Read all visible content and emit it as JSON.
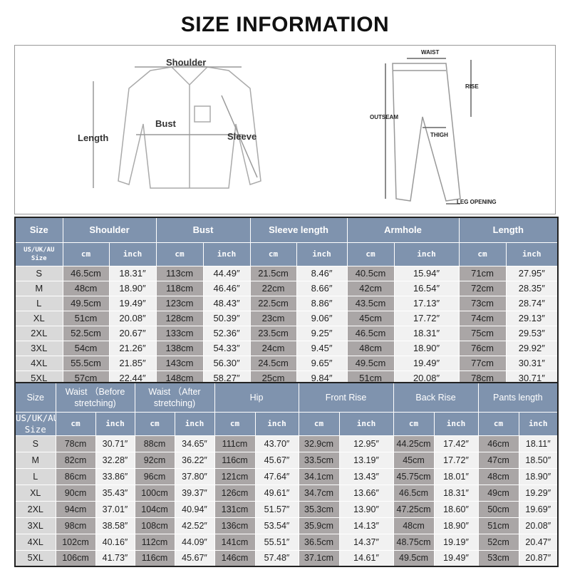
{
  "title": "SIZE INFORMATION",
  "shirt_diagram": {
    "labels": {
      "shoulder": "Shoulder",
      "bust": "Bust",
      "length": "Length",
      "sleeve": "Sleeve"
    }
  },
  "pants_diagram": {
    "labels": {
      "waist": "WAIST",
      "rise": "RISE",
      "outseam": "OUTSEAM",
      "thigh": "THIGH",
      "leg_opening": "LEG OPENING"
    }
  },
  "units": {
    "cm": "cm",
    "inch": "inch"
  },
  "size_label": "Size",
  "size_sub_label": "US/UK/AU Size",
  "top_table": {
    "columns": [
      "Shoulder",
      "Bust",
      "Sleeve length",
      "Armhole",
      "Length"
    ],
    "rows": [
      {
        "size": "S",
        "values": [
          "46.5cm",
          "18.31″",
          "113cm",
          "44.49″",
          "21.5cm",
          "8.46″",
          "40.5cm",
          "15.94″",
          "71cm",
          "27.95″"
        ]
      },
      {
        "size": "M",
        "values": [
          "48cm",
          "18.90″",
          "118cm",
          "46.46″",
          "22cm",
          "8.66″",
          "42cm",
          "16.54″",
          "72cm",
          "28.35″"
        ]
      },
      {
        "size": "L",
        "values": [
          "49.5cm",
          "19.49″",
          "123cm",
          "48.43″",
          "22.5cm",
          "8.86″",
          "43.5cm",
          "17.13″",
          "73cm",
          "28.74″"
        ]
      },
      {
        "size": "XL",
        "values": [
          "51cm",
          "20.08″",
          "128cm",
          "50.39″",
          "23cm",
          "9.06″",
          "45cm",
          "17.72″",
          "74cm",
          "29.13″"
        ]
      },
      {
        "size": "2XL",
        "values": [
          "52.5cm",
          "20.67″",
          "133cm",
          "52.36″",
          "23.5cm",
          "9.25″",
          "46.5cm",
          "18.31″",
          "75cm",
          "29.53″"
        ]
      },
      {
        "size": "3XL",
        "values": [
          "54cm",
          "21.26″",
          "138cm",
          "54.33″",
          "24cm",
          "9.45″",
          "48cm",
          "18.90″",
          "76cm",
          "29.92″"
        ]
      },
      {
        "size": "4XL",
        "values": [
          "55.5cm",
          "21.85″",
          "143cm",
          "56.30″",
          "24.5cm",
          "9.65″",
          "49.5cm",
          "19.49″",
          "77cm",
          "30.31″"
        ]
      },
      {
        "size": "5XL",
        "values": [
          "57cm",
          "22.44″",
          "148cm",
          "58.27″",
          "25cm",
          "9.84″",
          "51cm",
          "20.08″",
          "78cm",
          "30.71″"
        ]
      }
    ]
  },
  "bottom_table": {
    "columns": [
      "Waist （Before stretching)",
      "Waist （After stretching)",
      "Hip",
      "Front Rise",
      "Back Rise",
      "Pants length"
    ],
    "rows": [
      {
        "size": "S",
        "values": [
          "78cm",
          "30.71″",
          "88cm",
          "34.65″",
          "111cm",
          "43.70″",
          "32.9cm",
          "12.95″",
          "44.25cm",
          "17.42″",
          "46cm",
          "18.11″"
        ]
      },
      {
        "size": "M",
        "values": [
          "82cm",
          "32.28″",
          "92cm",
          "36.22″",
          "116cm",
          "45.67″",
          "33.5cm",
          "13.19″",
          "45cm",
          "17.72″",
          "47cm",
          "18.50″"
        ]
      },
      {
        "size": "L",
        "values": [
          "86cm",
          "33.86″",
          "96cm",
          "37.80″",
          "121cm",
          "47.64″",
          "34.1cm",
          "13.43″",
          "45.75cm",
          "18.01″",
          "48cm",
          "18.90″"
        ]
      },
      {
        "size": "XL",
        "values": [
          "90cm",
          "35.43″",
          "100cm",
          "39.37″",
          "126cm",
          "49.61″",
          "34.7cm",
          "13.66″",
          "46.5cm",
          "18.31″",
          "49cm",
          "19.29″"
        ]
      },
      {
        "size": "2XL",
        "values": [
          "94cm",
          "37.01″",
          "104cm",
          "40.94″",
          "131cm",
          "51.57″",
          "35.3cm",
          "13.90″",
          "47.25cm",
          "18.60″",
          "50cm",
          "19.69″"
        ]
      },
      {
        "size": "3XL",
        "values": [
          "98cm",
          "38.58″",
          "108cm",
          "42.52″",
          "136cm",
          "53.54″",
          "35.9cm",
          "14.13″",
          "48cm",
          "18.90″",
          "51cm",
          "20.08″"
        ]
      },
      {
        "size": "4XL",
        "values": [
          "102cm",
          "40.16″",
          "112cm",
          "44.09″",
          "141cm",
          "55.51″",
          "36.5cm",
          "14.37″",
          "48.75cm",
          "19.19″",
          "52cm",
          "20.47″"
        ]
      },
      {
        "size": "5XL",
        "values": [
          "106cm",
          "41.73″",
          "116cm",
          "45.67″",
          "146cm",
          "57.48″",
          "37.1cm",
          "14.61″",
          "49.5cm",
          "19.49″",
          "53cm",
          "20.87″"
        ]
      }
    ]
  },
  "colors": {
    "header": "#7f93ae",
    "cm_cell": "#aaa6a6",
    "inch_cell": "#f1f1f1",
    "size_cell": "#d9d9d9"
  }
}
